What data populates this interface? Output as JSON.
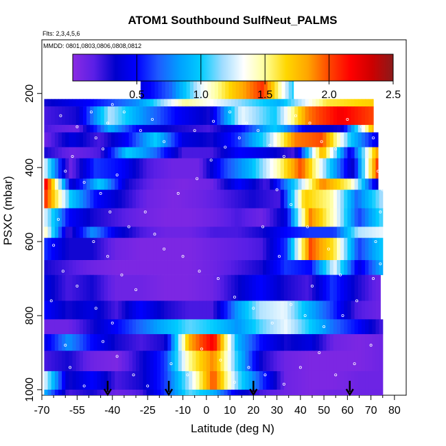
{
  "chart_data": {
    "type": "heatmap",
    "title": "ATOM1 Southbound SulfNeut_PALMS",
    "subtitle_flights": "Flts: 2,3,4,5,6",
    "subtitle_dates": "MMDD: 0801,0803,0806,0808,0812",
    "xlabel": "Latitude (deg N)",
    "ylabel": "PSXC (mbar)",
    "xlim": [
      -70,
      85
    ],
    "ylim": [
      1015,
      55
    ],
    "x_ticks": [
      -70,
      -55,
      -40,
      -25,
      -10,
      0,
      10,
      20,
      30,
      40,
      50,
      60,
      70,
      80
    ],
    "x_tick_labels": [
      "-70",
      "-55",
      "-40",
      "-25",
      "-10",
      "0",
      "10",
      "20",
      "30",
      "40",
      "50",
      "60",
      "70",
      "80"
    ],
    "x_minor_ticks": [
      -65,
      -60,
      -50,
      -45,
      -35,
      -30,
      -20,
      -15,
      -5,
      5,
      15,
      25,
      35,
      45,
      55,
      65,
      75
    ],
    "y_ticks": [
      200,
      400,
      600,
      800,
      1000
    ],
    "y_tick_labels": [
      "200",
      "400",
      "600",
      "800",
      "1000"
    ],
    "colorbar": {
      "min": 0,
      "max": 2.5,
      "ticks": [
        0.5,
        1.0,
        1.5,
        2.0,
        2.5
      ],
      "tick_labels": [
        "0.5",
        "1.0",
        "1.5",
        "2.0",
        "2.5"
      ],
      "colors": [
        "#8a2be2",
        "#5a1fe6",
        "#0000cd",
        "#0000ff",
        "#1e5bff",
        "#00a0ff",
        "#00ccff",
        "#9fdcff",
        "#ffffff",
        "#ffff99",
        "#ffd700",
        "#ffa500",
        "#ff4500",
        "#ff0000",
        "#cd0000",
        "#8b1a1a"
      ]
    },
    "arrow_latitudes": [
      -42,
      -16,
      20,
      61
    ],
    "band_pressure_edges": [
      140,
      215,
      235,
      285,
      305,
      345,
      375,
      430,
      460,
      510,
      560,
      590,
      650,
      690,
      760,
      810,
      850,
      895,
      950,
      1000,
      1015
    ],
    "layers": [
      {
        "p_top": 140,
        "p_bot": 215,
        "x_start": -28,
        "x_end": 37,
        "v": [
          0.4,
          0.7,
          1.3,
          1.7,
          2.05,
          1.0
        ]
      },
      {
        "p_top": 215,
        "p_bot": 235,
        "x_start": -69,
        "x_end": 71,
        "v": [
          0.3,
          0.5,
          0.8,
          1.5,
          1.2,
          0.9,
          1.6,
          1.7
        ]
      },
      {
        "p_top": 235,
        "p_bot": 285,
        "x_start": -69,
        "x_end": 71,
        "v": [
          0.2,
          0.3,
          1.2,
          0.8,
          0.5,
          0.3,
          1.3,
          1.0,
          1.9,
          2.2,
          2.0
        ]
      },
      {
        "p_top": 285,
        "p_bot": 305,
        "x_start": -69,
        "x_end": 71,
        "v": [
          0.2,
          0.1,
          0.9,
          0.4,
          0.3,
          0.2,
          0.5,
          1.0,
          0.4,
          0.3,
          1.8
        ]
      },
      {
        "p_top": 305,
        "p_bot": 345,
        "x_start": -69,
        "x_end": 73,
        "v": [
          0.1,
          0.4,
          0.2,
          0.5,
          1.0,
          0.4,
          0.3,
          0.6,
          1.1,
          1.9,
          2.0,
          1.0,
          0.4
        ]
      },
      {
        "p_top": 345,
        "p_bot": 375,
        "x_start": -69,
        "x_end": 73,
        "v": [
          0.3,
          0.1,
          0.2,
          1.0,
          0.7,
          0.2,
          0.2,
          0.5,
          0.4,
          0.2,
          1.8,
          0.4,
          1.9
        ]
      },
      {
        "p_top": 375,
        "p_bot": 430,
        "x_start": -69,
        "x_end": 73,
        "v": [
          1.3,
          0.1,
          0.6,
          0.5,
          0.2,
          0.1,
          0.1,
          0.6,
          0.9,
          1.4,
          2.0,
          1.1,
          0.3,
          2.1
        ]
      },
      {
        "p_top": 430,
        "p_bot": 460,
        "x_start": -69,
        "x_end": 73,
        "v": [
          2.3,
          0.3,
          1.0,
          0.3,
          0.1,
          0.05,
          0.1,
          0.5,
          0.2,
          1.0,
          1.9,
          1.5,
          0.3
        ]
      },
      {
        "p_top": 460,
        "p_bot": 510,
        "x_start": -69,
        "x_end": 75,
        "v": [
          2.1,
          1.0,
          0.5,
          0.3,
          0.1,
          0.05,
          0.1,
          0.2,
          0.3,
          0.2,
          1.7,
          1.5,
          0.7,
          1.2
        ]
      },
      {
        "p_top": 510,
        "p_bot": 560,
        "x_start": -69,
        "x_end": 75,
        "v": [
          1.3,
          0.5,
          0.3,
          0.2,
          0.1,
          0.05,
          0.05,
          0.1,
          0.2,
          0.1,
          0.4,
          1.9,
          1.4,
          0.6,
          1.1
        ]
      },
      {
        "p_top": 560,
        "p_bot": 590,
        "x_start": -69,
        "x_end": 75,
        "v": [
          1.5,
          0.2,
          0.8,
          0.4,
          0.2,
          0.1,
          0.1,
          0.2,
          0.2,
          0.3,
          0.5,
          0.6,
          0.6,
          1.2,
          1.3
        ]
      },
      {
        "p_top": 590,
        "p_bot": 650,
        "x_start": -69,
        "x_end": 75,
        "v": [
          0.6,
          0.3,
          0.3,
          0.1,
          0.05,
          0.05,
          0.05,
          0.1,
          0.15,
          0.2,
          0.6,
          2.0,
          1.6,
          0.6,
          1.0
        ]
      },
      {
        "p_top": 650,
        "p_bot": 690,
        "x_start": -69,
        "x_end": 75,
        "v": [
          0.3,
          0.2,
          0.1,
          0.05,
          0.05,
          0.05,
          0.05,
          0.1,
          0.2,
          0.3,
          0.6,
          0.5,
          1.3,
          0.4,
          0.9
        ]
      },
      {
        "p_top": 690,
        "p_bot": 760,
        "x_start": -69,
        "x_end": 74,
        "v": [
          0.4,
          0.2,
          0.3,
          0.1,
          0.1,
          0.05,
          0.05,
          0.1,
          0.3,
          0.5,
          0.3,
          0.2,
          0.6,
          0.3,
          0.1
        ]
      },
      {
        "p_top": 760,
        "p_bot": 810,
        "x_start": -69,
        "x_end": 74,
        "v": [
          0.5,
          0.3,
          0.4,
          0.2,
          0.5,
          0.3,
          0.2,
          0.2,
          0.8,
          1.2,
          1.3,
          0.9,
          0.6,
          0.2,
          0.1
        ]
      },
      {
        "p_top": 810,
        "p_bot": 850,
        "x_start": -69,
        "x_end": 75,
        "v": [
          0.1,
          0.1,
          0.3,
          0.5,
          0.7,
          0.9,
          1.1,
          1.0,
          0.8,
          1.1,
          1.3,
          1.0,
          0.7,
          0.5,
          0.2
        ]
      },
      {
        "p_top": 850,
        "p_bot": 895,
        "x_start": -69,
        "x_end": 75,
        "v": [
          0.4,
          0.8,
          0.5,
          0.3,
          0.2,
          0.3,
          1.8,
          2.2,
          0.9,
          0.5,
          0.3,
          0.4,
          0.1,
          0.05,
          0.1
        ]
      },
      {
        "p_top": 895,
        "p_bot": 950,
        "x_start": -69,
        "x_end": 75,
        "v": [
          0.2,
          0.3,
          0.1,
          0.05,
          0.3,
          0.6,
          1.5,
          1.9,
          1.0,
          0.3,
          0.1,
          0.05,
          0.05,
          0.05,
          0.1
        ]
      },
      {
        "p_top": 950,
        "p_bot": 1000,
        "x_start": -69,
        "x_end": 75,
        "v": [
          1.3,
          0.3,
          0.5,
          0.2,
          0.3,
          0.6,
          1.2,
          2.0,
          1.1,
          0.6,
          0.1,
          0.05,
          0.05,
          0.1,
          0.1
        ]
      },
      {
        "p_top": 1000,
        "p_bot": 1015,
        "x_start": -69,
        "x_end": 75,
        "v": [
          0.9,
          0.2,
          0.3,
          0.1,
          0.2,
          0.6,
          1.1,
          0.9,
          0.4,
          0.2,
          0.1,
          0.05,
          0.1,
          0.1,
          0.1
        ]
      }
    ],
    "sample_points": [
      [
        -62,
        260
      ],
      [
        -55,
        290
      ],
      [
        -47,
        320
      ],
      [
        -44,
        350
      ],
      [
        -42,
        280
      ],
      [
        -40,
        230
      ],
      [
        -35,
        250
      ],
      [
        -28,
        300
      ],
      [
        -23,
        270
      ],
      [
        -18,
        330
      ],
      [
        -60,
        410
      ],
      [
        -52,
        440
      ],
      [
        -45,
        470
      ],
      [
        -38,
        420
      ],
      [
        -41,
        520
      ],
      [
        -33,
        560
      ],
      [
        -48,
        600
      ],
      [
        -42,
        640
      ],
      [
        -36,
        690
      ],
      [
        -30,
        730
      ],
      [
        -55,
        720
      ],
      [
        -47,
        780
      ],
      [
        -40,
        820
      ],
      [
        -44,
        870
      ],
      [
        -38,
        910
      ],
      [
        -31,
        960
      ],
      [
        -25,
        990
      ],
      [
        -15,
        930
      ],
      [
        -8,
        960
      ],
      [
        -2,
        890
      ],
      [
        6,
        920
      ],
      [
        12,
        980
      ],
      [
        18,
        940
      ],
      [
        25,
        960
      ],
      [
        33,
        985
      ],
      [
        40,
        940
      ],
      [
        48,
        900
      ],
      [
        55,
        960
      ],
      [
        63,
        930
      ],
      [
        70,
        880
      ],
      [
        22,
        300
      ],
      [
        27,
        340
      ],
      [
        33,
        370
      ],
      [
        38,
        260
      ],
      [
        44,
        280
      ],
      [
        49,
        330
      ],
      [
        55,
        350
      ],
      [
        60,
        270
      ],
      [
        66,
        290
      ],
      [
        71,
        320
      ],
      [
        73,
        410
      ],
      [
        75,
        460
      ],
      [
        74,
        520
      ],
      [
        72,
        600
      ],
      [
        74,
        660
      ],
      [
        71,
        700
      ],
      [
        64,
        760
      ],
      [
        58,
        800
      ],
      [
        50,
        830
      ],
      [
        42,
        800
      ],
      [
        36,
        770
      ],
      [
        28,
        820
      ],
      [
        20,
        780
      ],
      [
        12,
        750
      ],
      [
        5,
        700
      ],
      [
        -3,
        680
      ],
      [
        -10,
        640
      ],
      [
        -18,
        620
      ],
      [
        -22,
        580
      ],
      [
        -26,
        520
      ],
      [
        -12,
        470
      ],
      [
        -4,
        430
      ],
      [
        2,
        380
      ],
      [
        8,
        345
      ],
      [
        14,
        320
      ],
      [
        17,
        280
      ],
      [
        10,
        250
      ],
      [
        3,
        275
      ],
      [
        -5,
        300
      ],
      [
        -60,
        880
      ],
      [
        -58,
        940
      ],
      [
        -52,
        990
      ],
      [
        -63,
        540
      ],
      [
        -65,
        610
      ],
      [
        -61,
        680
      ],
      [
        -66,
        760
      ],
      [
        -57,
        370
      ],
      [
        -49,
        250
      ],
      [
        30,
        460
      ],
      [
        36,
        500
      ],
      [
        43,
        560
      ],
      [
        52,
        620
      ],
      [
        57,
        690
      ],
      [
        45,
        720
      ],
      [
        31,
        640
      ],
      [
        24,
        560
      ]
    ]
  }
}
